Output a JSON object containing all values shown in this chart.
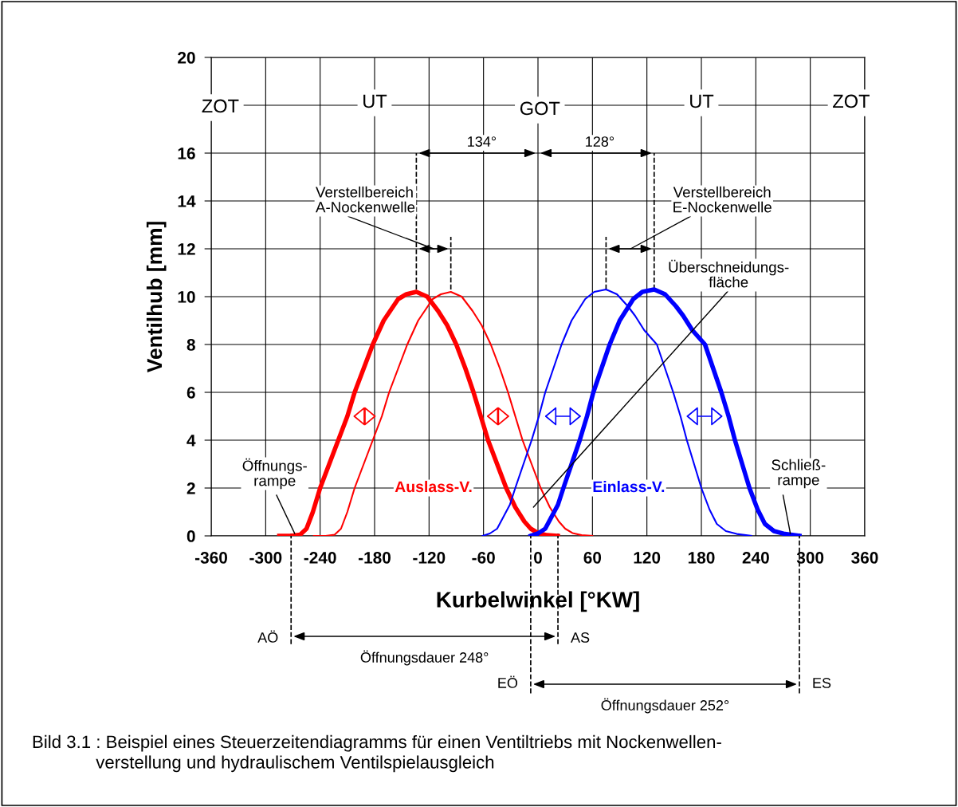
{
  "chart_data": {
    "type": "line",
    "xlabel": "Kurbelwinkel [°KW]",
    "ylabel": "Ventilhub [mm]",
    "xlim": [
      -360,
      360
    ],
    "xticks": [
      -360,
      -300,
      -240,
      -180,
      -120,
      -60,
      0,
      60,
      120,
      180,
      240,
      300,
      360
    ],
    "ylim": [
      0,
      20
    ],
    "yticks": [
      0,
      2,
      4,
      6,
      8,
      10,
      12,
      14,
      16,
      {
        "value": 18,
        "label": null
      },
      20
    ],
    "grid": true,
    "legend": false,
    "marker": "none",
    "line_style": "solid",
    "series": [
      {
        "color": "#ff0000",
        "x": [
          -285,
          -272,
          -262,
          -255,
          -248,
          -240,
          -230,
          -220,
          -210,
          -202,
          -192,
          -182,
          -170,
          -154,
          -145,
          -134,
          -122,
          -110,
          -100,
          -90,
          -80,
          -71,
          -63,
          -55,
          -45,
          -35,
          -25,
          -15,
          -8,
          0,
          10,
          22
        ],
        "values": [
          0,
          0,
          0.05,
          0.3,
          1.0,
          2.0,
          3.0,
          4.0,
          5.0,
          6.0,
          7.0,
          8.0,
          9.0,
          9.9,
          10.1,
          10.2,
          10.0,
          9.4,
          8.8,
          8.0,
          7.0,
          6.0,
          5.0,
          4.0,
          3.0,
          2.0,
          1.2,
          0.6,
          0.3,
          0.12,
          0.03,
          0
        ]
      },
      {
        "color": "#ff0000",
        "x": [
          -247,
          -234,
          -224,
          -217,
          -210,
          -202,
          -192,
          -182,
          -172,
          -164,
          -154,
          -144,
          -132,
          -116,
          -107,
          -96,
          -84,
          -72,
          -62,
          -52,
          -42,
          -33,
          -25,
          -17,
          -7,
          3,
          13,
          23,
          30,
          38,
          48,
          60
        ],
        "values": [
          0,
          0,
          0.05,
          0.3,
          1.0,
          2.0,
          3.0,
          4.0,
          5.0,
          6.0,
          7.0,
          8.0,
          9.0,
          9.9,
          10.1,
          10.2,
          10.0,
          9.4,
          8.8,
          8.0,
          7.0,
          6.0,
          5.0,
          4.0,
          3.0,
          2.0,
          1.2,
          0.6,
          0.3,
          0.12,
          0.03,
          0
        ]
      },
      {
        "color": "#0000ff",
        "x": [
          -8,
          0,
          8,
          15,
          22,
          28,
          37,
          46,
          54,
          61,
          70,
          79,
          90,
          105,
          115,
          128,
          140,
          152,
          160,
          170,
          184,
          193,
          202,
          210,
          217,
          225,
          233,
          242,
          250,
          260,
          272,
          288
        ],
        "values": [
          0,
          0.1,
          0.3,
          0.8,
          1.3,
          2,
          3,
          4,
          5,
          6,
          7,
          8,
          9,
          9.9,
          10.2,
          10.3,
          10.1,
          9.6,
          9.2,
          8.6,
          8,
          7,
          6,
          5,
          4,
          3,
          2,
          1.1,
          0.5,
          0.2,
          0.08,
          0
        ]
      },
      {
        "color": "#0000ff",
        "x": [
          -61,
          -53,
          -45,
          -38,
          -31,
          -25,
          -16,
          -7,
          1,
          8,
          17,
          26,
          37,
          52,
          62,
          75,
          87,
          99,
          107,
          117,
          131,
          140,
          149,
          157,
          164,
          172,
          180,
          189,
          197,
          207,
          219,
          235
        ],
        "values": [
          0,
          0.1,
          0.3,
          0.8,
          1.3,
          2,
          3,
          4,
          5,
          6,
          7,
          8,
          9,
          9.9,
          10.2,
          10.3,
          10.1,
          9.6,
          9.2,
          8.6,
          8,
          7,
          6,
          5,
          4,
          3,
          2,
          1.1,
          0.5,
          0.2,
          0.08,
          0
        ]
      }
    ],
    "ref_lines": [
      {
        "axis": "x",
        "value": -134,
        "line_style": "dashed"
      },
      {
        "axis": "x",
        "value": -96,
        "line_style": "dashed"
      },
      {
        "axis": "x",
        "value": 75,
        "line_style": "dashed"
      },
      {
        "axis": "x",
        "value": 128,
        "line_style": "dashed"
      },
      {
        "axis": "x",
        "value": -272,
        "label": "AÖ",
        "line_style": "dashed"
      },
      {
        "axis": "x",
        "value": 22,
        "label": "AS",
        "line_style": "dashed"
      },
      {
        "axis": "x",
        "value": -8,
        "label": "EÖ",
        "line_style": "dashed"
      },
      {
        "axis": "x",
        "value": 288,
        "label": "ES",
        "line_style": "dashed"
      }
    ],
    "annotations": [
      "ZOT",
      "UT",
      "GOT",
      "UT",
      "ZOT",
      "134°",
      "128°",
      "Verstellbereich\nA-Nockenwelle",
      "Verstellbereich\nE-Nockenwelle",
      "Überschneidungs-\nfläche",
      {
        "text": "Öffnungs-\nrampe",
        "x": -268,
        "y": 0.1
      },
      {
        "text": "Schließ-\nrampe",
        "x": 278,
        "y": 0.1
      },
      "Auslass-V.",
      "Einlass-V.",
      "Öffnungsdauer 248°",
      "Öffnungsdauer 252°",
      "Bild 3.1 : Beispiel eines Steuerzeitendiagramms für einen Ventiltriebs mit Nockenwellen-\n             verstellung und hydraulischem Ventilspielausgleich"
    ]
  }
}
